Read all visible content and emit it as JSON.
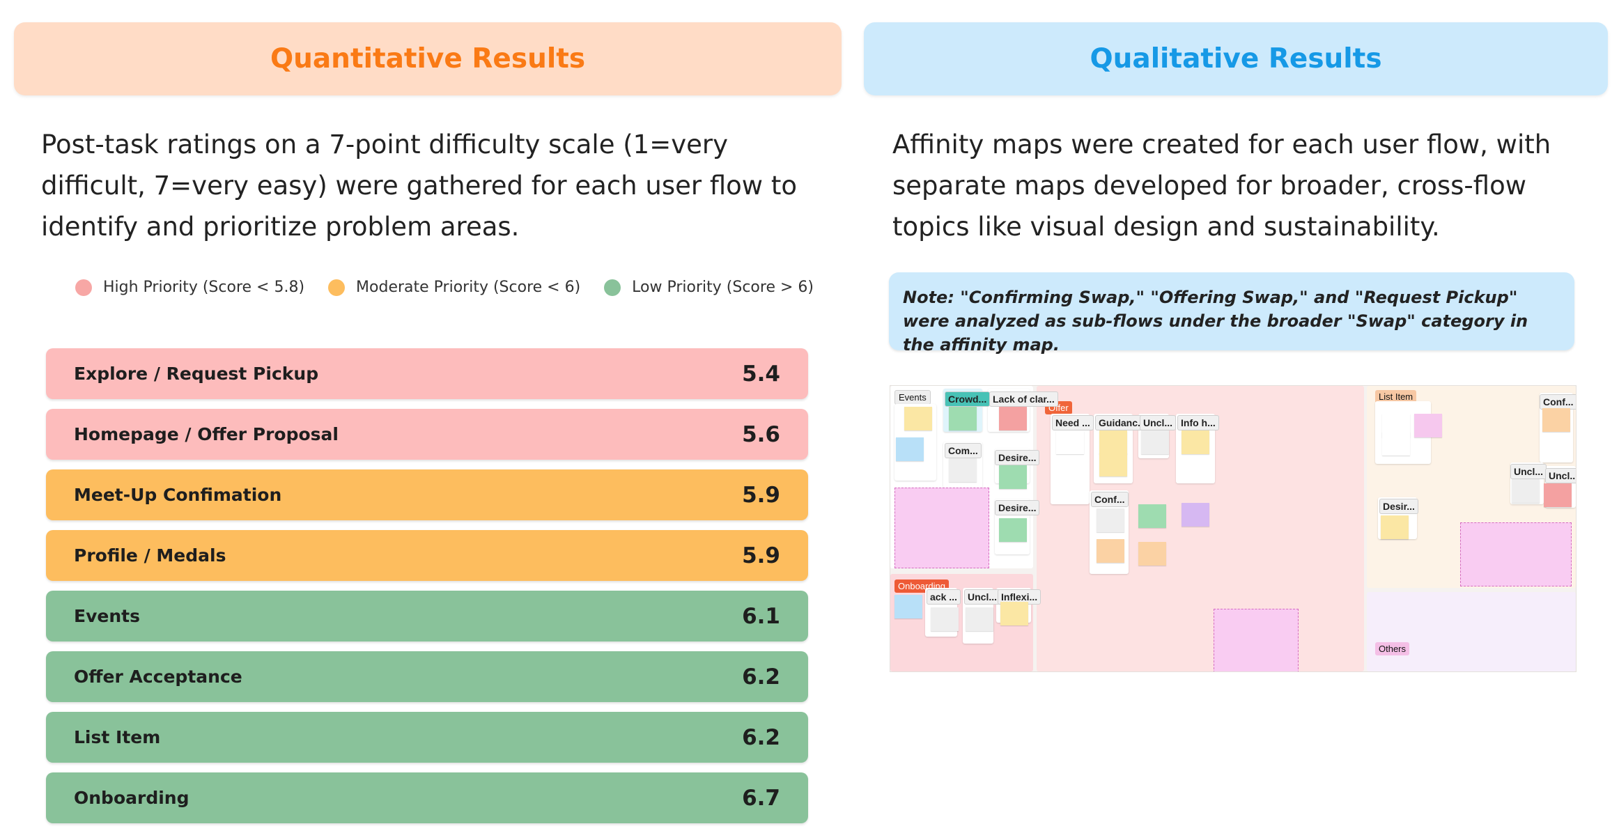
{
  "quant": {
    "title": "Quantitative Results",
    "intro": "Post-task ratings on a 7-point difficulty scale (1=very difficult, 7=very easy) were gathered for each user flow to identify and prioritize problem areas.",
    "legend": [
      {
        "label": "High Priority (Score < 5.8)",
        "color": "#f7a7a5"
      },
      {
        "label": "Moderate Priority (Score < 6)",
        "color": "#fdbd5e"
      },
      {
        "label": "Low Priority (Score > 6)",
        "color": "#89c29a"
      }
    ],
    "rows": [
      {
        "label": "Explore / Request Pickup",
        "score": "5.4",
        "color": "#fdbcbc"
      },
      {
        "label": "Homepage / Offer Proposal",
        "score": "5.6",
        "color": "#fdbcbc"
      },
      {
        "label": "Meet-Up Confimation",
        "score": "5.9",
        "color": "#fdbd5e"
      },
      {
        "label": "Profile / Medals",
        "score": "5.9",
        "color": "#fdbd5e"
      },
      {
        "label": "Events",
        "score": "6.1",
        "color": "#89c29a"
      },
      {
        "label": "Offer Acceptance",
        "score": "6.2",
        "color": "#89c29a"
      },
      {
        "label": "List Item",
        "score": "6.2",
        "color": "#89c29a"
      },
      {
        "label": "Onboarding",
        "score": "6.7",
        "color": "#89c29a"
      }
    ]
  },
  "qual": {
    "title": "Qualitative Results",
    "intro": "Affinity maps were created for each user flow, with separate maps developed for broader, cross-flow topics like visual design and sustainability.",
    "note": "Note: \"Confirming Swap,\" \"Offering Swap,\" and \"Request Pickup\" were analyzed as sub-flows under the broader \"Swap\" category in the affinity map.",
    "map": {
      "zone_tags": [
        "Events",
        "Offer",
        "Onboarding",
        "List Item",
        "Others"
      ],
      "cluster_labels": [
        "Crowd...",
        "Lack of clar...",
        "Com...",
        "Desire...",
        "Desire...",
        "Need ...",
        "Guidanc...",
        "Uncl...",
        "Info h...",
        "Conf...",
        "ack ...",
        "Uncl...",
        "Inflexi...",
        "Conf...",
        "Uncl...",
        "Uncl...",
        "Desir..."
      ]
    }
  }
}
